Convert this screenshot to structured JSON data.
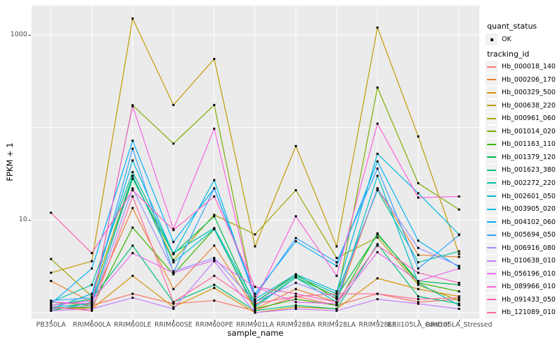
{
  "figure": {
    "background": "#FFFFFF",
    "panel_background": "#EBEBEB",
    "grid_color": "#FFFFFF",
    "tick_label_color": "#4D4D4D",
    "point_color": "#000000"
  },
  "legend": {
    "quant_status_title": "quant_status",
    "quant_status_items": [
      {
        "label": "OK",
        "symbol": "black-point"
      }
    ],
    "tracking_id_title": "tracking_id"
  },
  "chart_data": {
    "type": "line",
    "title": "",
    "xlabel": "sample_name",
    "ylabel": "FPKM + 1",
    "y_scale": "log10",
    "y_tick_labels": [
      "1000",
      "10"
    ],
    "y_tick_values": [
      1000,
      10
    ],
    "y_gridline_values": [
      1000,
      100,
      10,
      1
    ],
    "ylim": [
      0.87,
      2100
    ],
    "grid": "on",
    "legend_position": "right",
    "point_marker": {
      "shape": "square",
      "color": "#000000",
      "meaning": "quant_status OK"
    },
    "categories": [
      "PB350LA",
      "RRIM600LA",
      "RRIM600LE",
      "RRIM600SE",
      "RRIM600PE",
      "RRIM901LA",
      "RRIM928BA",
      "RRIM928LA",
      "RRIM928LE",
      "RRII105LA_Control",
      "RRII105LA_Stressed"
    ],
    "series": [
      {
        "name": "Hb_000018_140",
        "color": "#F8766D",
        "values": [
          1.1,
          1.2,
          1.6,
          1.25,
          1.35,
          1.05,
          1.5,
          1.2,
          1.6,
          1.3,
          1.4
        ]
      },
      {
        "name": "Hb_000206_170",
        "color": "#EA8331",
        "values": [
          2.2,
          1.3,
          13.5,
          1.8,
          5.3,
          1.1,
          1.8,
          1.3,
          22,
          4.2,
          4.0
        ]
      },
      {
        "name": "Hb_000329_500",
        "color": "#D89000",
        "values": [
          1.15,
          1.1,
          2.5,
          1.15,
          1.85,
          1.0,
          1.15,
          1.1,
          2.35,
          1.8,
          1.5
        ]
      },
      {
        "name": "Hb_000638_220",
        "color": "#C09B00",
        "values": [
          2.7,
          3.6,
          1500,
          175,
          550,
          5.2,
          63,
          5.2,
          1200,
          80,
          4.3
        ]
      },
      {
        "name": "Hb_000961_060",
        "color": "#A3A500",
        "values": [
          3.8,
          1.5,
          30,
          3.7,
          11.4,
          7.0,
          21,
          3.9,
          6.5,
          2.0,
          1.35
        ]
      },
      {
        "name": "Hb_001014_020",
        "color": "#7CAE00",
        "values": [
          1.3,
          1.2,
          174,
          67,
          175,
          1.3,
          2.6,
          1.4,
          270,
          25,
          13
        ]
      },
      {
        "name": "Hb_001163_110",
        "color": "#39B600",
        "values": [
          1.1,
          1.15,
          8.3,
          2.6,
          8.0,
          1.1,
          1.4,
          1.2,
          7.2,
          2.1,
          1.7
        ]
      },
      {
        "name": "Hb_001379_120",
        "color": "#00BB4E",
        "values": [
          1.05,
          1.3,
          28,
          4.3,
          11.0,
          1.2,
          2.4,
          1.5,
          7.0,
          2.2,
          2.0
        ]
      },
      {
        "name": "Hb_001623_380",
        "color": "#00BF7D",
        "values": [
          1.2,
          1.4,
          5.3,
          1.3,
          2.0,
          1.05,
          1.2,
          1.1,
          5.5,
          1.5,
          1.25
        ]
      },
      {
        "name": "Hb_002272_220",
        "color": "#00C1A3",
        "values": [
          1.3,
          2.0,
          33,
          4.4,
          8.2,
          1.3,
          2.5,
          1.6,
          21,
          3.5,
          4.6
        ]
      },
      {
        "name": "Hb_002601_050",
        "color": "#00BFC4",
        "values": [
          1.15,
          1.25,
          30,
          3.5,
          8.0,
          1.15,
          2.4,
          1.3,
          30,
          2.1,
          1.2
        ]
      },
      {
        "name": "Hb_003905_020",
        "color": "#00BAE0",
        "values": [
          1.1,
          1.6,
          44,
          4.3,
          27,
          1.4,
          2.6,
          1.7,
          52,
          19.5,
          7.0
        ]
      },
      {
        "name": "Hb_004102_060",
        "color": "#00B0F6",
        "values": [
          1.25,
          3.0,
          72,
          5.8,
          22,
          1.6,
          5.9,
          3.2,
          43,
          6.0,
          3.1
        ]
      },
      {
        "name": "Hb_005694_050",
        "color": "#35A2FF",
        "values": [
          1.35,
          1.45,
          59,
          2.7,
          22,
          1.5,
          6.4,
          3.5,
          36,
          3.0,
          6.9
        ]
      },
      {
        "name": "Hb_006916_080",
        "color": "#9590FF",
        "values": [
          1.1,
          1.2,
          22,
          2.8,
          3.9,
          1.3,
          2.1,
          1.45,
          22,
          5.0,
          3.2
        ]
      },
      {
        "name": "Hb_010638_010",
        "color": "#C77CFF",
        "values": [
          1.05,
          1.1,
          1.45,
          1.1,
          3.6,
          1.0,
          1.1,
          1.05,
          1.4,
          1.25,
          1.1
        ]
      },
      {
        "name": "Hb_056196_010",
        "color": "#E76BF3",
        "values": [
          1.2,
          1.35,
          4.4,
          2.7,
          3.7,
          1.9,
          1.3,
          1.25,
          4.5,
          2.2,
          3.0
        ]
      },
      {
        "name": "Hb_089966_010",
        "color": "#FA62DB",
        "values": [
          1.3,
          1.25,
          170,
          8.0,
          97,
          1.35,
          11,
          2.5,
          110,
          17.5,
          18
        ]
      },
      {
        "name": "Hb_091433_050",
        "color": "#FF62BC",
        "values": [
          12,
          4.4,
          21,
          7.8,
          18,
          1.9,
          1.6,
          1.3,
          5.3,
          2.7,
          2.1
        ]
      },
      {
        "name": "Hb_121089_010",
        "color": "#FF6A98",
        "values": [
          1.15,
          1.05,
          18,
          1.3,
          2.5,
          1.25,
          1.5,
          1.6,
          1.6,
          1.4,
          1.45
        ]
      }
    ]
  }
}
